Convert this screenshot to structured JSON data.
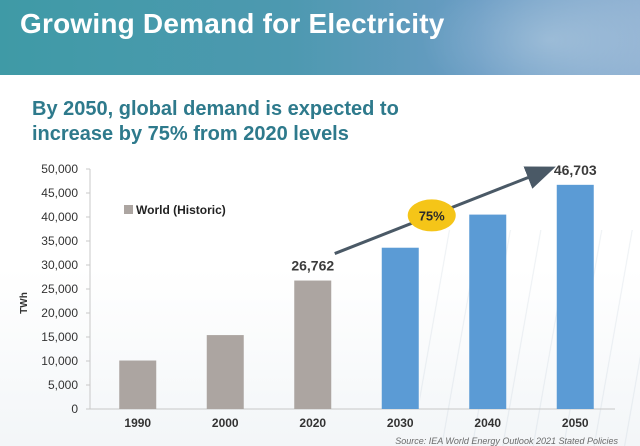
{
  "header": {
    "title": "Growing Demand for Electricity"
  },
  "subtitle": "By 2050, global demand is expected to increase by 75% from 2020 levels",
  "source": "Source: IEA World Energy Outlook 2021 Stated Policies",
  "colors": {
    "historic": "#aca5a1",
    "projected": "#5b9bd5",
    "badge": "#f5c518",
    "arrow": "#4a5966"
  },
  "chart_data": {
    "type": "bar",
    "title": "",
    "xlabel": "",
    "ylabel": "TWh",
    "ylim": [
      0,
      50000
    ],
    "yticks": [
      0,
      5000,
      10000,
      15000,
      20000,
      25000,
      30000,
      35000,
      40000,
      45000,
      50000
    ],
    "ytick_labels": [
      "0",
      "5,000",
      "10,000",
      "15,000",
      "20,000",
      "25,000",
      "30,000",
      "35,000",
      "40,000",
      "45,000",
      "50,000"
    ],
    "categories": [
      "1990",
      "2000",
      "2020",
      "2030",
      "2040",
      "2050"
    ],
    "values": [
      10100,
      15400,
      26762,
      33600,
      40500,
      46703
    ],
    "series_type": [
      "historic",
      "historic",
      "historic",
      "projected",
      "projected",
      "projected"
    ],
    "legend": [
      {
        "label": "World (Historic)",
        "position": "top-left"
      }
    ],
    "data_labels": [
      {
        "category": "2020",
        "text": "26,762"
      },
      {
        "category": "2050",
        "text": "46,703"
      }
    ],
    "annotation": {
      "text": "75%",
      "from": "2020",
      "to": "2050",
      "style": "arrow"
    }
  }
}
